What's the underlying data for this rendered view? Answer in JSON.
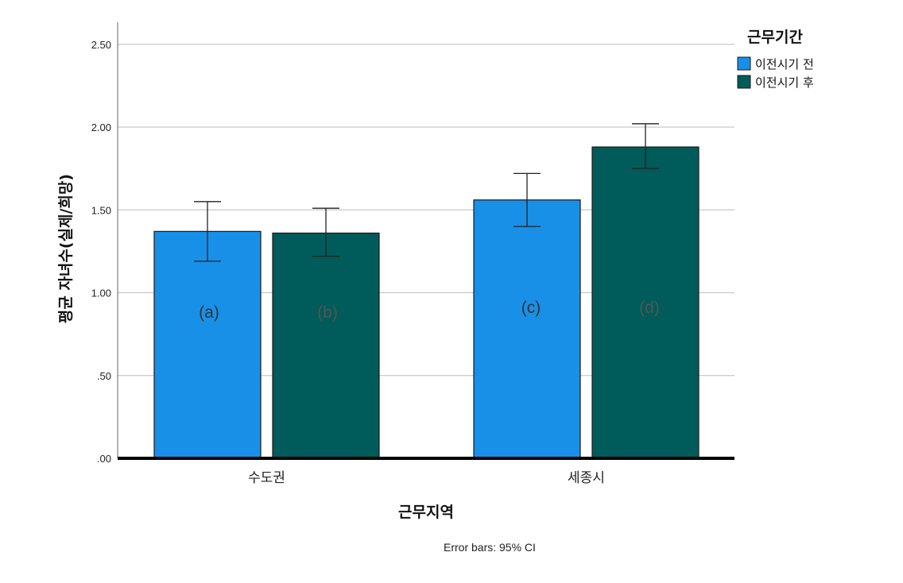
{
  "chart_data": {
    "type": "bar",
    "categories": [
      "수도권",
      "세종시"
    ],
    "series": [
      {
        "name": "이전시기 전",
        "color": "#1890E8",
        "values": [
          1.37,
          1.56
        ],
        "ci_low": [
          1.19,
          1.4
        ],
        "ci_high": [
          1.55,
          1.72
        ]
      },
      {
        "name": "이전시기 후",
        "color": "#005B5B",
        "values": [
          1.36,
          1.88
        ],
        "ci_low": [
          1.22,
          1.75
        ],
        "ci_high": [
          1.51,
          2.02
        ]
      }
    ],
    "annotations": [
      [
        "(a)",
        "(c)"
      ],
      [
        "(b)",
        "(d)"
      ]
    ],
    "annotation_colors": [
      "#333333",
      "#555555"
    ],
    "xlabel": "근무지역",
    "ylabel": "평균 자녀수(실제/희망)",
    "ylim": [
      0,
      2.6
    ],
    "yticks": [
      0,
      0.5,
      1.0,
      1.5,
      2.0,
      2.5
    ],
    "ytick_labels": [
      ".00",
      ".50",
      "1.00",
      "1.50",
      "2.00",
      "2.50"
    ],
    "legend_title": "근무기간",
    "legend_position": "top-right",
    "grid": true,
    "footnote": "Error bars: 95% CI"
  }
}
